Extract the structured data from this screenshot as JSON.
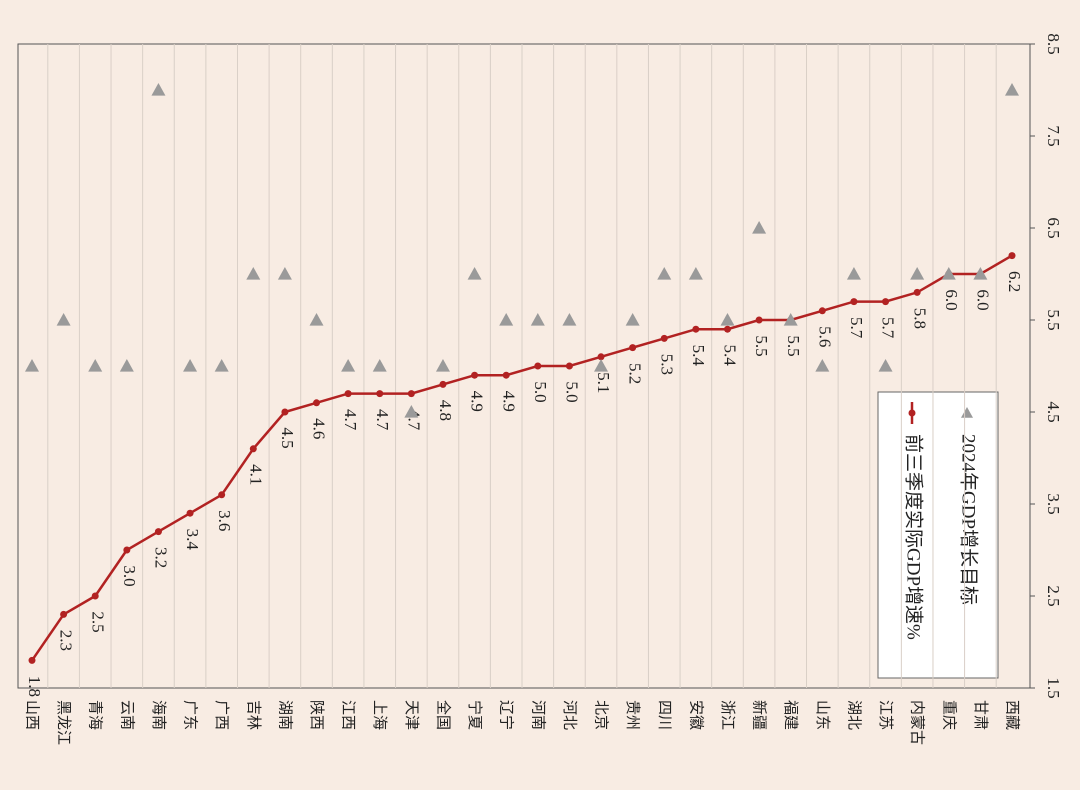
{
  "chart_data": {
    "type": "line",
    "categories": [
      "山西",
      "黑龙江",
      "青海",
      "云南",
      "海南",
      "广东",
      "广西",
      "吉林",
      "湖南",
      "陕西",
      "江西",
      "上海",
      "天津",
      "全国",
      "宁夏",
      "辽宁",
      "河南",
      "河北",
      "北京",
      "贵州",
      "四川",
      "安徽",
      "浙江",
      "新疆",
      "福建",
      "山东",
      "湖北",
      "江苏",
      "内蒙古",
      "重庆",
      "甘肃",
      "西藏"
    ],
    "series": [
      {
        "name": "前三季度实际GDP增速%",
        "color": "#b22222",
        "marker": "circle",
        "values": [
          1.8,
          2.3,
          2.5,
          3.0,
          3.2,
          3.4,
          3.6,
          4.1,
          4.5,
          4.6,
          4.7,
          4.7,
          4.7,
          4.8,
          4.9,
          4.9,
          5.0,
          5.0,
          5.1,
          5.2,
          5.3,
          5.4,
          5.4,
          5.5,
          5.5,
          5.6,
          5.7,
          5.7,
          5.8,
          6.0,
          6.0,
          6.2
        ],
        "value_labels": [
          "1.8",
          "2.3",
          "2.5",
          "3.0",
          "3.2",
          "3.4",
          "3.6",
          "4.1",
          "4.5",
          "4.6",
          "4.7",
          "4.7",
          "4.7",
          "4.8",
          "4.9",
          "4.9",
          "5.0",
          "5.0",
          "5.1",
          "5.2",
          "5.3",
          "5.4",
          "5.4",
          "5.5",
          "5.5",
          "5.6",
          "5.7",
          "5.7",
          "5.8",
          "6.0",
          "6.0",
          "6.2"
        ]
      },
      {
        "name": "2024年GDP增长目标",
        "color": "#9a9a9a",
        "marker": "triangle",
        "values": [
          5.0,
          5.5,
          5.0,
          5.0,
          8.0,
          5.0,
          5.0,
          6.0,
          6.0,
          5.5,
          5.0,
          5.0,
          4.5,
          5.0,
          6.0,
          5.5,
          5.5,
          5.5,
          5.0,
          5.5,
          6.0,
          6.0,
          5.5,
          6.5,
          5.5,
          5.0,
          6.0,
          5.0,
          6.0,
          6.0,
          6.0,
          8.0
        ]
      }
    ],
    "ylim": [
      1.5,
      8.5
    ],
    "yticks": [
      1.5,
      2.5,
      3.5,
      4.5,
      5.5,
      6.5,
      7.5,
      8.5
    ],
    "legend": "lower-right"
  }
}
